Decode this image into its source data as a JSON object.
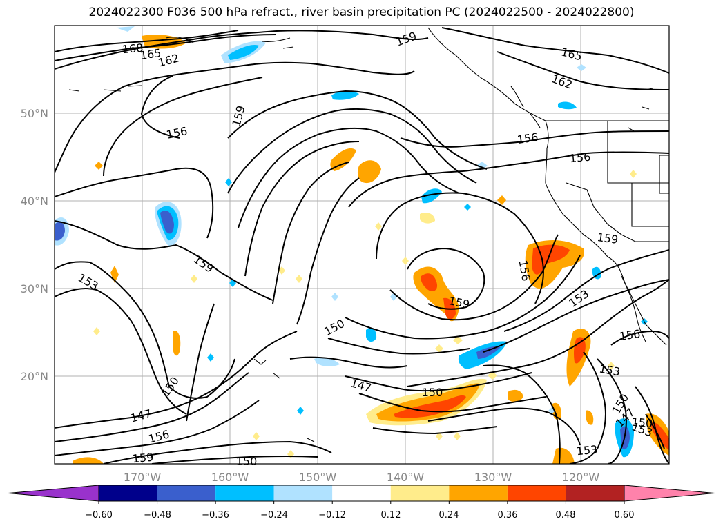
{
  "title": "2024022300 F036 500 hPa refract., river basin precipitation PC (2024022500 - 2024022800)",
  "map": {
    "lat_labels": [
      "50°N",
      "40°N",
      "30°N",
      "20°N"
    ],
    "lon_labels": [
      "170°W",
      "160°W",
      "150°W",
      "140°W",
      "130°W",
      "120°W"
    ],
    "contour_labels": [
      "168",
      "165",
      "162",
      "159",
      "165",
      "162",
      "159",
      "156",
      "156",
      "156",
      "159",
      "159",
      "153",
      "156",
      "159",
      "150",
      "153",
      "156",
      "153",
      "147",
      "150",
      "150",
      "147",
      "156",
      "159",
      "150",
      "150",
      "147",
      "150",
      "153",
      "153"
    ]
  },
  "colorbar": {
    "tick_labels": [
      "−0.60",
      "−0.48",
      "−0.36",
      "−0.24",
      "−0.12",
      "0.12",
      "0.24",
      "0.36",
      "0.48",
      "0.60"
    ],
    "colors": [
      "#9932cc",
      "#00008b",
      "#3a5fcd",
      "#00bfff",
      "#b0e2ff",
      "#ffffff",
      "#ffec8b",
      "#ffa500",
      "#ff4500",
      "#b22222",
      "#ff82ab"
    ]
  }
}
